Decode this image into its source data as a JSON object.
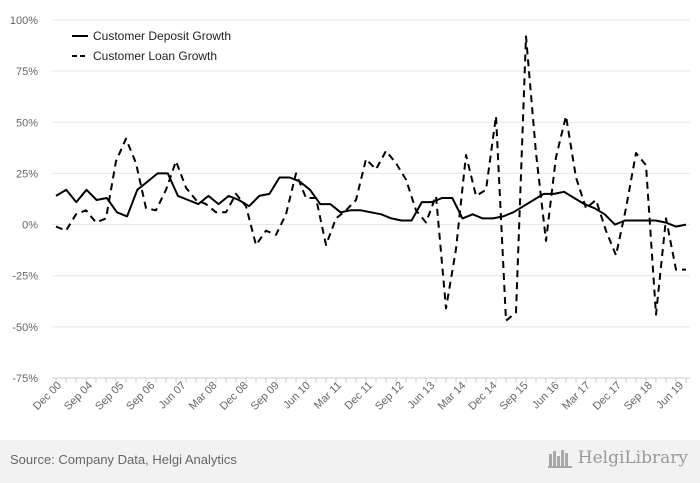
{
  "chart_data": {
    "type": "line",
    "title": "",
    "xlabel": "",
    "ylabel": "",
    "ylim": [
      -75,
      100
    ],
    "yticks": [
      100,
      75,
      50,
      25,
      0,
      -25,
      -50,
      -75
    ],
    "ytick_suffix": "%",
    "grid": true,
    "legend_position": "top-left",
    "xtick_labels": [
      "Dec 00",
      "Sep 04",
      "Sep 05",
      "Sep 06",
      "Jun 07",
      "Mar 08",
      "Dec 08",
      "Sep 09",
      "Jun 10",
      "Mar 11",
      "Dec 11",
      "Sep 12",
      "Jun 13",
      "Mar 14",
      "Dec 14",
      "Sep 15",
      "Jun 16",
      "Mar 17",
      "Dec 17",
      "Sep 18",
      "Jun 19"
    ],
    "series": [
      {
        "name": "Customer Deposit Growth",
        "color": "#000000",
        "dash": "solid",
        "values": [
          14,
          17,
          11,
          17,
          12,
          13,
          6,
          4,
          17,
          21,
          25,
          25,
          14,
          12,
          10,
          14,
          10,
          14,
          12,
          9,
          14,
          15,
          23,
          23,
          21,
          17,
          10,
          10,
          6,
          7,
          7,
          6,
          5,
          3,
          2,
          2,
          11,
          11,
          13,
          13,
          3,
          5,
          3,
          3,
          4,
          6,
          9,
          12,
          15,
          15,
          16,
          13,
          10,
          8,
          5,
          0,
          2,
          2,
          2,
          2,
          1,
          -1,
          0
        ]
      },
      {
        "name": "Customer Loan Growth",
        "color": "#000000",
        "dash": "dashed",
        "values": [
          -1,
          -3,
          5,
          7,
          1,
          3,
          31,
          42,
          30,
          8,
          7,
          17,
          31,
          18,
          12,
          10,
          6,
          6,
          15,
          9,
          -10,
          -3,
          -5,
          5,
          25,
          13,
          13,
          -10,
          3,
          7,
          12,
          32,
          27,
          36,
          30,
          22,
          7,
          1,
          14,
          -41,
          -12,
          34,
          14,
          17,
          53,
          -47,
          -43,
          92,
          35,
          -8,
          33,
          53,
          23,
          8,
          12,
          -3,
          -15,
          8,
          35,
          29,
          -44,
          3,
          -22,
          -22
        ]
      }
    ]
  },
  "footer": {
    "source": "Source: Company Data, Helgi Analytics",
    "brand": "HelgiLibrary"
  }
}
